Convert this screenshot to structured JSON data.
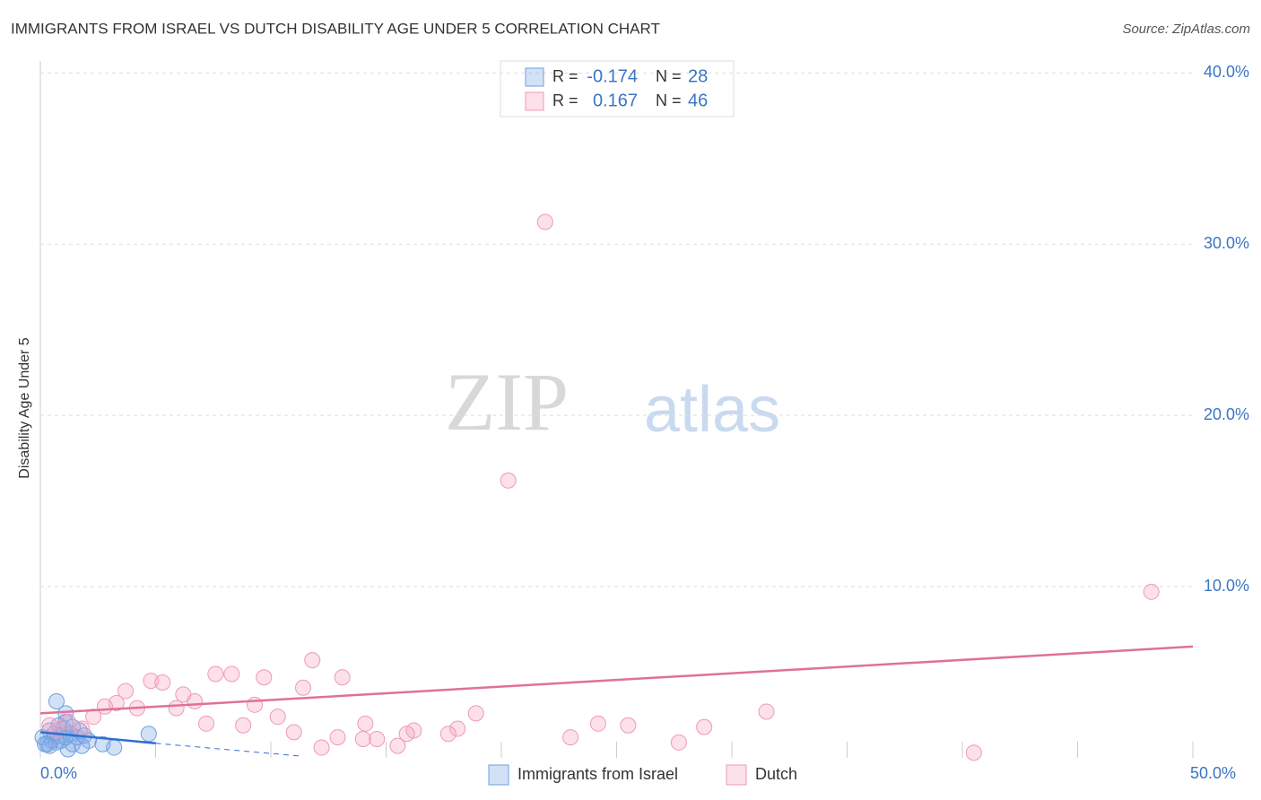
{
  "chart_data": {
    "type": "scatter",
    "title": "IMMIGRANTS FROM ISRAEL VS DUTCH DISABILITY AGE UNDER 5 CORRELATION CHART",
    "source": "Source: ZipAtlas.com",
    "y_label": "Disability Age Under 5",
    "watermark": {
      "dark": "ZIP",
      "light": "atlas"
    },
    "xlim": [
      0,
      50
    ],
    "ylim": [
      0,
      40.7
    ],
    "xticks": [
      {
        "value": 0,
        "label": "0.0%"
      },
      {
        "value": 50,
        "label": "50.0%"
      }
    ],
    "x_minor_ticks": [
      5,
      10,
      15,
      20,
      25,
      30,
      35,
      40,
      45,
      50
    ],
    "yticks": [
      {
        "value": 10,
        "label": "10.0%"
      },
      {
        "value": 20,
        "label": "20.0%"
      },
      {
        "value": 30,
        "label": "30.0%"
      },
      {
        "value": 40,
        "label": "40.0%"
      }
    ],
    "grid": true,
    "r_label": "R =",
    "n_label": "N =",
    "series": [
      {
        "name": "Immigrants from Israel",
        "color": "#6e9fe0",
        "trend_color": "#2f6fd0",
        "r": -0.174,
        "n": 28,
        "trend_x": [
          0,
          5,
          11.3
        ],
        "trend_y": [
          1.5,
          0.85,
          0.1
        ],
        "x": [
          0.7,
          1.1,
          4.7,
          2.1,
          2.7,
          3.2,
          1.8,
          1.2,
          1.4,
          1.1,
          1.0,
          0.8,
          0.5,
          0.3,
          0.1,
          0.4,
          0.6,
          0.9,
          1.6,
          1.7,
          1.3,
          0.7,
          0.2,
          0.4,
          1.1,
          1.9,
          1.4,
          0.8
        ],
        "values": [
          3.3,
          2.6,
          1.4,
          1.0,
          0.8,
          0.6,
          0.7,
          0.5,
          0.8,
          2.1,
          1.7,
          1.3,
          1.0,
          0.8,
          1.2,
          1.6,
          1.4,
          1.0,
          1.2,
          1.6,
          1.4,
          0.9,
          0.8,
          0.7,
          1.2,
          1.3,
          1.8,
          1.9
        ]
      },
      {
        "name": "Dutch",
        "color": "#ee9ab5",
        "trend_color": "#e0709a",
        "r": 0.167,
        "n": 46,
        "trend_x": [
          0,
          50
        ],
        "trend_y": [
          2.6,
          6.5
        ],
        "x": [
          21.9,
          20.3,
          48.2,
          11.8,
          7.6,
          8.3,
          9.7,
          13.1,
          4.8,
          5.3,
          3.7,
          11.4,
          6.2,
          6.7,
          3.3,
          2.8,
          4.2,
          5.9,
          9.3,
          2.3,
          7.2,
          8.8,
          10.3,
          14.1,
          18.9,
          31.5,
          24.2,
          25.5,
          28.8,
          18.1,
          16.2,
          15.9,
          17.7,
          11.0,
          12.9,
          14.0,
          14.6,
          23.0,
          27.7,
          12.2,
          15.5,
          40.5,
          1.8,
          1.2,
          0.7,
          0.4
        ],
        "values": [
          31.3,
          16.2,
          9.7,
          5.7,
          4.9,
          4.9,
          4.7,
          4.7,
          4.5,
          4.4,
          3.9,
          4.1,
          3.7,
          3.3,
          3.2,
          3.0,
          2.9,
          2.9,
          3.1,
          2.4,
          2.0,
          1.9,
          2.4,
          2.0,
          2.6,
          2.7,
          2.0,
          1.9,
          1.8,
          1.7,
          1.6,
          1.4,
          1.4,
          1.5,
          1.2,
          1.1,
          1.1,
          1.2,
          0.9,
          0.6,
          0.7,
          0.3,
          1.7,
          2.1,
          1.6,
          1.9
        ]
      }
    ]
  }
}
